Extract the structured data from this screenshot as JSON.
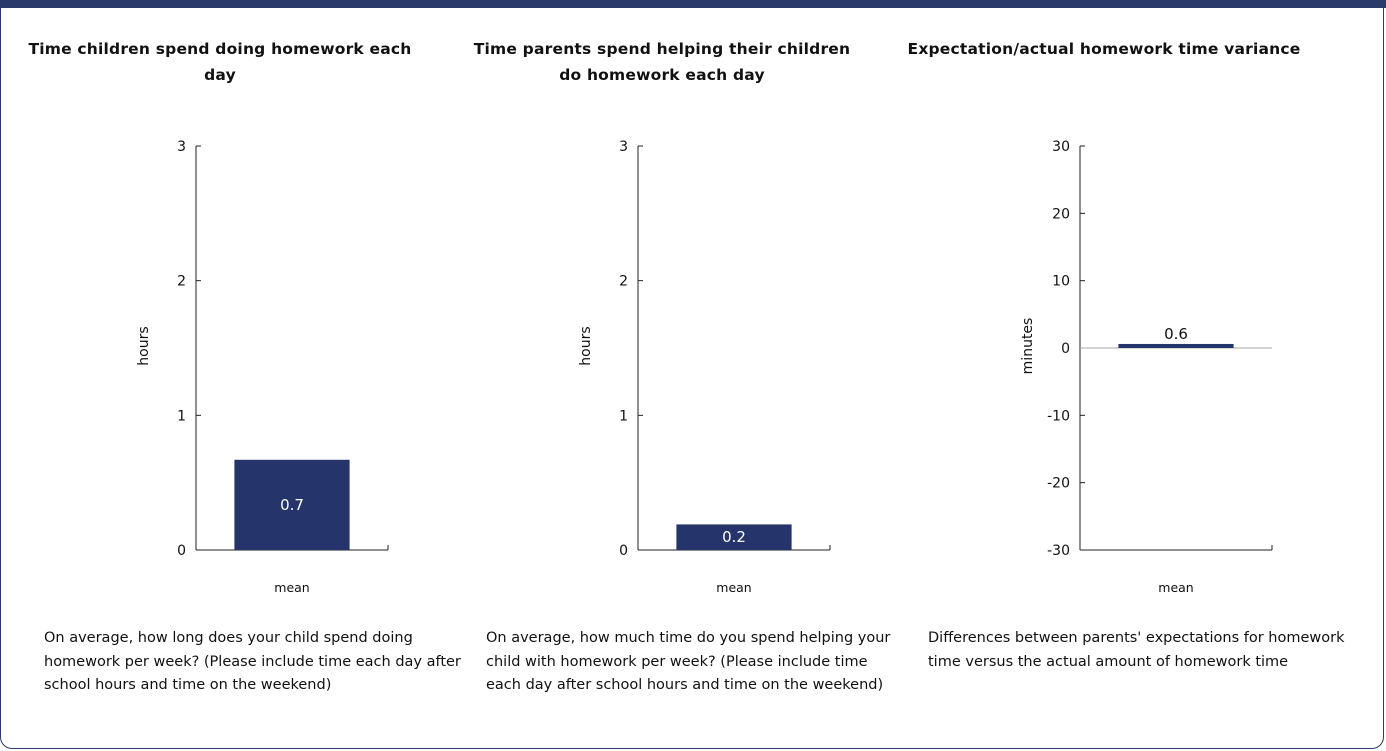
{
  "panels": [
    {
      "title": "Time children spend doing homework each day",
      "description": "On average, how long does your child spend doing homework per week? (Please include time each day after school hours and time on the weekend)"
    },
    {
      "title": "Time parents spend helping their children do homework each day",
      "description": "On average, how much time do you spend helping your child with homework per week? (Please include time each day after school hours and time on the weekend)"
    },
    {
      "title": "Expectation/actual homework time variance",
      "description": "Differences between parents' expectations for homework time versus the actual amount of homework time"
    }
  ],
  "colors": {
    "bar": "#25356b",
    "frame": "#2a3a6a",
    "zero_line": "#aaaaaa"
  },
  "chart_data": [
    {
      "type": "bar",
      "title": "Time children spend doing homework each day",
      "categories": [
        "mean"
      ],
      "values": [
        0.67
      ],
      "labels": [
        "0.7"
      ],
      "ylabel": "hours",
      "ylim": [
        0,
        3
      ],
      "yticks": [
        0,
        1,
        2,
        3
      ],
      "label_position": "inside"
    },
    {
      "type": "bar",
      "title": "Time parents spend helping their children do homework each day",
      "categories": [
        "mean"
      ],
      "values": [
        0.19
      ],
      "labels": [
        "0.2"
      ],
      "ylabel": "hours",
      "ylim": [
        0,
        3
      ],
      "yticks": [
        0,
        1,
        2,
        3
      ],
      "label_position": "inside"
    },
    {
      "type": "bar",
      "title": "Expectation/actual homework time variance",
      "categories": [
        "mean"
      ],
      "values": [
        0.6
      ],
      "labels": [
        "0.6"
      ],
      "ylabel": "minutes",
      "ylim": [
        -30,
        30
      ],
      "yticks": [
        -30,
        -20,
        -10,
        0,
        10,
        20,
        30
      ],
      "label_position": "above"
    }
  ]
}
